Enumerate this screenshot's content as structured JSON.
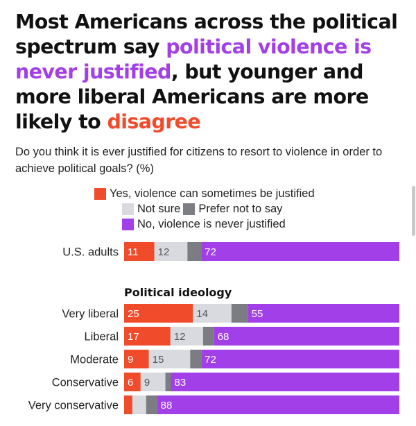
{
  "headline": {
    "part1": "Most Americans across the political spectrum say ",
    "highlight1": "political violence is never justified",
    "part2": ", but younger and more liberal Americans are more likely to ",
    "highlight2": "disagree"
  },
  "colors": {
    "yes": "#f04b2b",
    "not_sure": "#d8dadf",
    "prefer_not": "#7b7d82",
    "no": "#a23fe8",
    "highlight_purple": "#a23fe8",
    "highlight_red": "#f04b2b"
  },
  "chart_data": {
    "type": "bar",
    "orientation": "horizontal",
    "stacked": true,
    "subtitle": "Do you think it is ever justified for citizens to resort to violence in order to achieve political goals? (%)",
    "legend_placement": "top",
    "series": [
      {
        "name": "Yes, violence can sometimes be justified",
        "key": "yes"
      },
      {
        "name": "Not sure",
        "key": "not_sure"
      },
      {
        "name": "Prefer not to say",
        "key": "prefer_not"
      },
      {
        "name": "No, violence is never justified",
        "key": "no"
      }
    ],
    "groups": [
      {
        "title": "",
        "rows": [
          {
            "label": "U.S. adults",
            "values": [
              11,
              12,
              5,
              72
            ],
            "labels": [
              "11",
              "12",
              "",
              "72"
            ]
          }
        ]
      },
      {
        "title": "Political ideology",
        "rows": [
          {
            "label": "Very liberal",
            "values": [
              25,
              14,
              6,
              55
            ],
            "labels": [
              "25",
              "14",
              "",
              "55"
            ]
          },
          {
            "label": "Liberal",
            "values": [
              17,
              12,
              4,
              68
            ],
            "labels": [
              "17",
              "12",
              "",
              "68"
            ]
          },
          {
            "label": "Moderate",
            "values": [
              9,
              15,
              4,
              72
            ],
            "labels": [
              "9",
              "15",
              "",
              "72"
            ]
          },
          {
            "label": "Conservative",
            "values": [
              6,
              9,
              2,
              83
            ],
            "labels": [
              "6",
              "9",
              "",
              "83"
            ]
          },
          {
            "label": "Very conservative",
            "values": [
              3,
              5,
              4,
              88
            ],
            "labels": [
              "",
              "",
              "",
              "88"
            ]
          }
        ]
      }
    ]
  }
}
